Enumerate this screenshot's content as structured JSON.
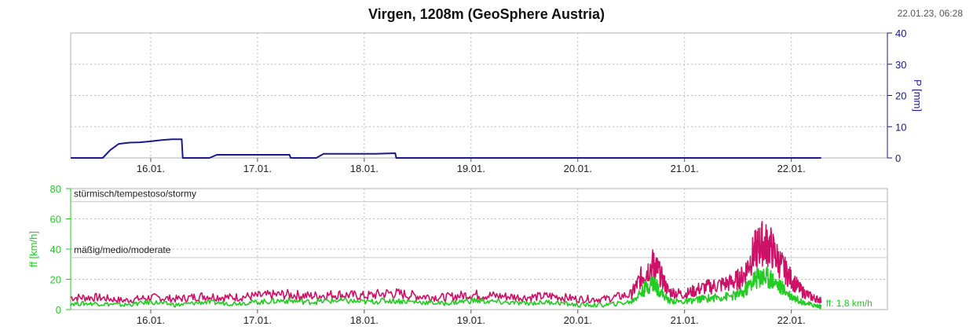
{
  "title": "Virgen, 1208m (GeoSphere Austria)",
  "timestamp": "22.01.23, 06:28",
  "colors": {
    "precip": "#1a1a8c",
    "ff_axis": "#22cc22",
    "ff_line": "#22cc22",
    "fx_line": "#cc1166",
    "grid": "#bbbbbb",
    "frame": "#b0b0b0"
  },
  "chart_data": [
    {
      "type": "line",
      "title": "Virgen, 1208m (GeoSphere Austria)",
      "ylabel": "P [mm]",
      "ylim": [
        0,
        40
      ],
      "yticks": [
        0,
        10,
        20,
        30,
        40
      ],
      "xlim": [
        15.25,
        22.9
      ],
      "xticks": [
        16,
        17,
        18,
        19,
        20,
        21,
        22
      ],
      "xtick_labels": [
        "16.01.",
        "17.01.",
        "18.01.",
        "19.01.",
        "20.01.",
        "21.01.",
        "22.01."
      ],
      "grid": true,
      "series": [
        {
          "color": "#1a1a8c",
          "x": [
            15.25,
            15.55,
            15.62,
            15.7,
            15.8,
            15.9,
            16.0,
            16.1,
            16.2,
            16.29,
            16.3,
            16.55,
            16.62,
            17.05,
            17.06,
            17.3,
            17.31,
            17.55,
            17.62,
            18.1,
            18.29,
            18.3,
            22.28
          ],
          "y": [
            0,
            0,
            2.5,
            4.5,
            4.9,
            5.0,
            5.3,
            5.7,
            6.0,
            6.0,
            0,
            0,
            1.0,
            1.0,
            1.0,
            1.0,
            0,
            0,
            1.3,
            1.3,
            1.5,
            0,
            0
          ]
        }
      ]
    },
    {
      "type": "line",
      "ylabel": "ff [km/h]",
      "ylim": [
        0,
        80
      ],
      "yticks": [
        0,
        20,
        40,
        60,
        80
      ],
      "xlim": [
        15.25,
        22.9
      ],
      "xticks": [
        16,
        17,
        18,
        19,
        20,
        21,
        22
      ],
      "xtick_labels": [
        "16.01.",
        "17.01.",
        "18.01.",
        "19.01.",
        "20.01.",
        "21.01.",
        "22.01."
      ],
      "grid": true,
      "annotations": [
        {
          "text": "stürmisch/tempestoso/stormy",
          "y": 75
        },
        {
          "text": "mäßig/medio/moderate",
          "y": 38
        }
      ],
      "end_label": "ff: 1,8 km/h",
      "series": [
        {
          "color": "#cc1166",
          "x": [
            15.25,
            15.5,
            15.75,
            16.0,
            16.25,
            16.5,
            16.75,
            17.0,
            17.25,
            17.5,
            17.75,
            18.0,
            18.25,
            18.5,
            18.75,
            19.0,
            19.25,
            19.5,
            19.75,
            20.0,
            20.25,
            20.5,
            20.6,
            20.7,
            20.75,
            20.85,
            21.0,
            21.15,
            21.3,
            21.45,
            21.55,
            21.65,
            21.72,
            21.8,
            21.9,
            22.0,
            22.1,
            22.2,
            22.28
          ],
          "y": [
            8,
            8,
            6,
            8,
            7,
            9,
            8,
            9,
            10,
            9,
            10,
            9,
            11,
            9,
            8,
            10,
            9,
            8,
            9,
            7,
            7,
            10,
            22,
            30,
            26,
            12,
            10,
            14,
            16,
            18,
            22,
            38,
            44,
            42,
            30,
            20,
            12,
            8,
            6
          ]
        },
        {
          "color": "#22cc22",
          "x": [
            15.25,
            15.5,
            15.75,
            16.0,
            16.25,
            16.5,
            16.75,
            17.0,
            17.25,
            17.5,
            17.75,
            18.0,
            18.25,
            18.5,
            18.75,
            19.0,
            19.25,
            19.5,
            19.75,
            20.0,
            20.25,
            20.5,
            20.6,
            20.7,
            20.75,
            20.85,
            21.0,
            21.15,
            21.3,
            21.45,
            21.55,
            21.65,
            21.72,
            21.8,
            21.9,
            22.0,
            22.1,
            22.2,
            22.28
          ],
          "y": [
            4,
            4,
            3,
            5,
            3,
            5,
            4,
            5,
            6,
            5,
            6,
            5,
            6,
            5,
            4,
            6,
            5,
            4,
            5,
            3,
            3,
            5,
            12,
            18,
            14,
            6,
            5,
            7,
            8,
            9,
            11,
            20,
            22,
            21,
            15,
            9,
            5,
            3,
            2
          ]
        }
      ]
    }
  ]
}
